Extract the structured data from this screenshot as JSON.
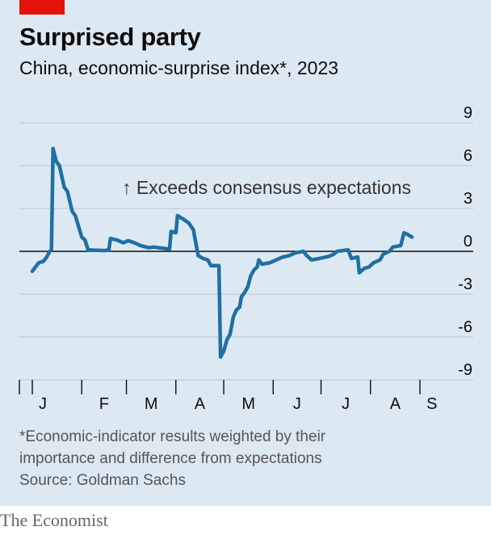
{
  "header": {
    "title": "Surprised party",
    "subtitle": "China, economic-surprise index*, 2023"
  },
  "chart_data": {
    "type": "line",
    "title": "Surprised party",
    "subtitle": "China, economic-surprise index*, 2023",
    "ylim": [
      -9,
      9
    ],
    "y_ticks": [
      9,
      6,
      3,
      0,
      -3,
      -6,
      -9
    ],
    "y_tick_labels": [
      "9",
      "6",
      "3",
      "0",
      "-3",
      "-6",
      "-9"
    ],
    "x_tick_labels": [
      "J",
      "F",
      "M",
      "A",
      "M",
      "J",
      "J",
      "A",
      "S"
    ],
    "grid": true,
    "annotation": "↑ Exceeds consensus expectations",
    "series": [
      {
        "color": "#1f6fa3",
        "points": [
          [
            "2023-01-01",
            -1.4
          ],
          [
            "2023-01-05",
            -0.8
          ],
          [
            "2023-01-08",
            -0.7
          ],
          [
            "2023-01-10",
            -0.4
          ],
          [
            "2023-01-12",
            0.0
          ],
          [
            "2023-01-13",
            0.1
          ],
          [
            "2023-01-14",
            7.2
          ],
          [
            "2023-01-16",
            6.3
          ],
          [
            "2023-01-18",
            6.0
          ],
          [
            "2023-01-21",
            4.5
          ],
          [
            "2023-01-23",
            4.2
          ],
          [
            "2023-01-26",
            2.8
          ],
          [
            "2023-01-28",
            2.5
          ],
          [
            "2023-02-01",
            1.0
          ],
          [
            "2023-02-03",
            0.8
          ],
          [
            "2023-02-05",
            0.1
          ],
          [
            "2023-02-15",
            0.05
          ],
          [
            "2023-02-18",
            0.1
          ],
          [
            "2023-02-19",
            0.9
          ],
          [
            "2023-02-23",
            0.8
          ],
          [
            "2023-02-27",
            0.6
          ],
          [
            "2023-03-02",
            0.75
          ],
          [
            "2023-03-06",
            0.6
          ],
          [
            "2023-03-10",
            0.4
          ],
          [
            "2023-03-15",
            0.25
          ],
          [
            "2023-03-18",
            0.3
          ],
          [
            "2023-03-25",
            0.2
          ],
          [
            "2023-03-28",
            0.15
          ],
          [
            "2023-03-29",
            1.4
          ],
          [
            "2023-04-01",
            1.3
          ],
          [
            "2023-04-02",
            2.5
          ],
          [
            "2023-04-05",
            2.3
          ],
          [
            "2023-04-09",
            2.0
          ],
          [
            "2023-04-12",
            1.5
          ],
          [
            "2023-04-15",
            -0.3
          ],
          [
            "2023-04-18",
            -0.5
          ],
          [
            "2023-04-21",
            -0.6
          ],
          [
            "2023-04-23",
            -1.0
          ],
          [
            "2023-04-28",
            -1.0
          ],
          [
            "2023-04-29",
            -7.4
          ],
          [
            "2023-05-01",
            -7.0
          ],
          [
            "2023-05-03",
            -6.2
          ],
          [
            "2023-05-05",
            -5.8
          ],
          [
            "2023-05-07",
            -4.6
          ],
          [
            "2023-05-09",
            -4.1
          ],
          [
            "2023-05-11",
            -3.9
          ],
          [
            "2023-05-12",
            -3.2
          ],
          [
            "2023-05-14",
            -2.9
          ],
          [
            "2023-05-16",
            -2.5
          ],
          [
            "2023-05-18",
            -1.7
          ],
          [
            "2023-05-20",
            -1.3
          ],
          [
            "2023-05-22",
            -1.1
          ],
          [
            "2023-05-23",
            -0.6
          ],
          [
            "2023-05-25",
            -0.9
          ],
          [
            "2023-05-30",
            -0.8
          ],
          [
            "2023-06-03",
            -0.6
          ],
          [
            "2023-06-07",
            -0.4
          ],
          [
            "2023-06-11",
            -0.3
          ],
          [
            "2023-06-15",
            -0.1
          ],
          [
            "2023-06-20",
            0.0
          ],
          [
            "2023-06-22",
            -0.3
          ],
          [
            "2023-06-25",
            -0.6
          ],
          [
            "2023-06-30",
            -0.5
          ],
          [
            "2023-07-06",
            -0.35
          ],
          [
            "2023-07-09",
            -0.2
          ],
          [
            "2023-07-11",
            0.0
          ],
          [
            "2023-07-18",
            0.1
          ],
          [
            "2023-07-20",
            -0.5
          ],
          [
            "2023-07-24",
            -0.4
          ],
          [
            "2023-07-25",
            -1.5
          ],
          [
            "2023-07-28",
            -1.2
          ],
          [
            "2023-07-31",
            -1.1
          ],
          [
            "2023-08-03",
            -0.8
          ],
          [
            "2023-08-07",
            -0.6
          ],
          [
            "2023-08-09",
            -0.2
          ],
          [
            "2023-08-13",
            0.0
          ],
          [
            "2023-08-15",
            0.3
          ],
          [
            "2023-08-20",
            0.4
          ],
          [
            "2023-08-22",
            1.3
          ],
          [
            "2023-08-24",
            1.2
          ],
          [
            "2023-08-27",
            1.0
          ]
        ]
      }
    ]
  },
  "footnote": {
    "line1": "*Economic-indicator results weighted by their",
    "line2": "importance and difference from expectations",
    "source": "Source: Goldman Sachs"
  },
  "brand": "The Economist",
  "colors": {
    "background": "#dde9f2",
    "line": "#1f6fa3",
    "accent": "#e3120b",
    "grid": "#b6c5d2",
    "zero_line": "#0d0d0d"
  }
}
